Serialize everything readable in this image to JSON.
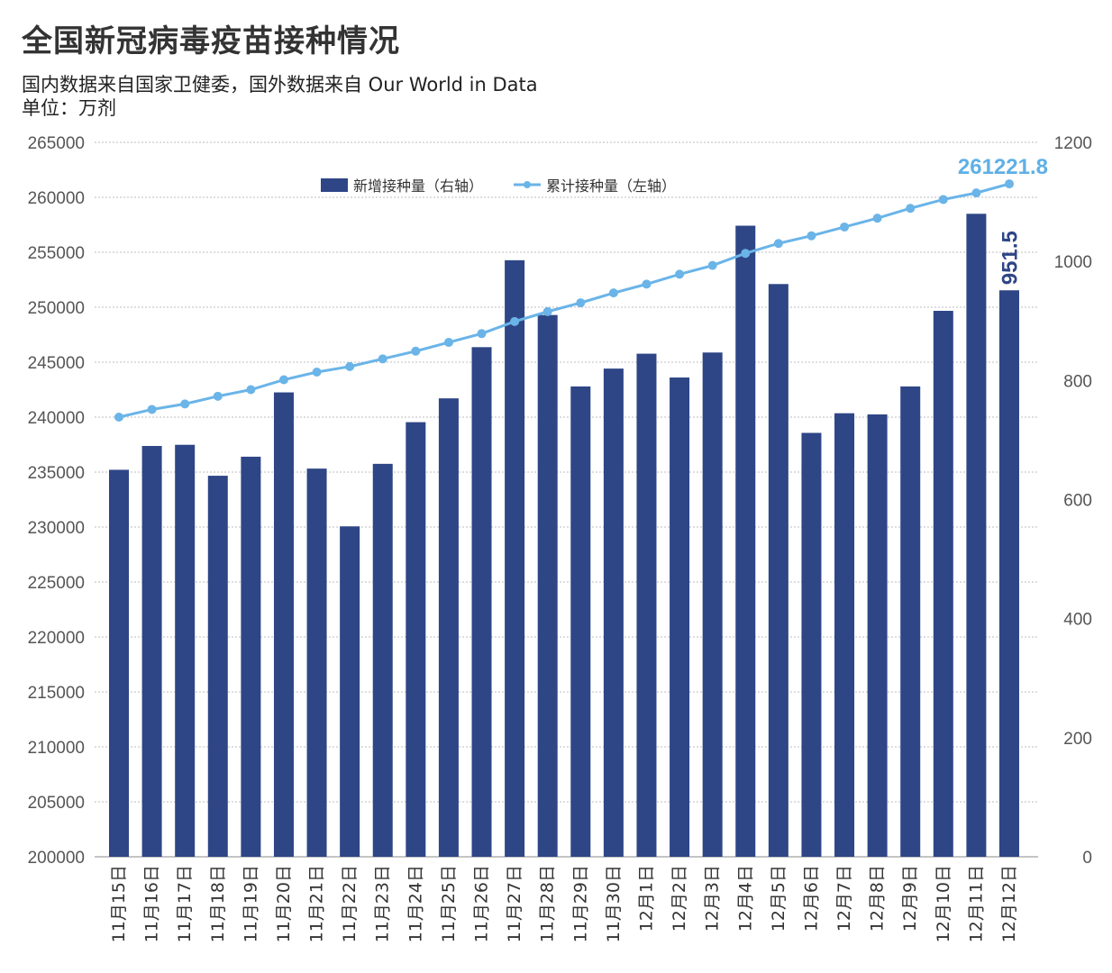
{
  "title": "全国新冠病毒疫苗接种情况",
  "subtitle": "国内数据来自国家卫健委，国外数据来自 Our World in Data",
  "unit": "单位：万剂",
  "chart_data": {
    "type": "bar",
    "categories": [
      "11月15日",
      "11月16日",
      "11月17日",
      "11月18日",
      "11月19日",
      "11月20日",
      "11月21日",
      "11月22日",
      "11月23日",
      "11月24日",
      "11月25日",
      "11月26日",
      "11月27日",
      "11月28日",
      "11月29日",
      "11月30日",
      "12月1日",
      "12月2日",
      "12月3日",
      "12月4日",
      "12月5日",
      "12月6日",
      "12月7日",
      "12月8日",
      "12月9日",
      "12月10日",
      "12月11日",
      "12月12日"
    ],
    "series": [
      {
        "name": "新增接种量（右轴）",
        "type": "bar",
        "axis": "right",
        "color": "#2e4686",
        "values": [
          650,
          690,
          692,
          640,
          672,
          780,
          652,
          555,
          660,
          730,
          770,
          856,
          1002,
          910,
          790,
          820,
          845,
          805,
          847,
          1060,
          962,
          712,
          745,
          743,
          790,
          917,
          1080,
          951.5
        ]
      },
      {
        "name": "累计接种量（左轴）",
        "type": "line",
        "axis": "left",
        "color": "#6ab4e8",
        "values": [
          240000,
          240700,
          241200,
          241900,
          242500,
          243400,
          244100,
          244600,
          245300,
          246000,
          246800,
          247600,
          248700,
          249600,
          250400,
          251300,
          252100,
          253000,
          253800,
          254900,
          255800,
          256500,
          257300,
          258100,
          259000,
          259800,
          260400,
          261221.8
        ]
      }
    ],
    "left_axis": {
      "min": 200000,
      "max": 265000,
      "ticks": [
        "200000",
        "205000",
        "210000",
        "215000",
        "220000",
        "225000",
        "230000",
        "235000",
        "240000",
        "245000",
        "250000",
        "255000",
        "260000",
        "265000"
      ]
    },
    "right_axis": {
      "min": 0,
      "max": 1200,
      "ticks": [
        "0",
        "200",
        "400",
        "600",
        "800",
        "1000",
        "1200"
      ]
    },
    "legend": {
      "placement": "top-center",
      "items": [
        "新增接种量（右轴）",
        "累计接种量（左轴）"
      ]
    },
    "annotations": {
      "last_cumulative": "261221.8",
      "last_new": "951.5"
    },
    "grid": true
  }
}
